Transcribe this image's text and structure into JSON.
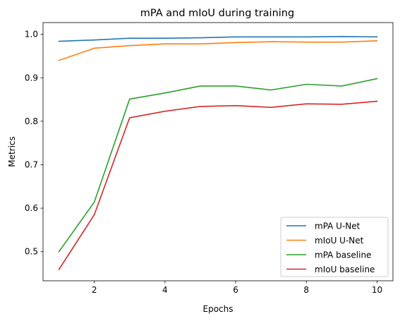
{
  "chart_data": {
    "type": "line",
    "title": "mPA and mIoU during training",
    "xlabel": "Epochs",
    "ylabel": "Metrics",
    "x": [
      1,
      2,
      3,
      4,
      5,
      6,
      7,
      8,
      9,
      10
    ],
    "xlim": [
      0.55,
      10.45
    ],
    "ylim": [
      0.433,
      1.027
    ],
    "xticks": [
      2,
      4,
      6,
      8,
      10
    ],
    "yticks": [
      0.5,
      0.6,
      0.7,
      0.8,
      0.9,
      1.0
    ],
    "ytick_labels": [
      "0.5",
      "0.6",
      "0.7",
      "0.8",
      "0.9",
      "1.0"
    ],
    "grid": false,
    "legend_position": "bottom-right",
    "series": [
      {
        "name": "mPA U-Net",
        "color": "#1f77b4",
        "values": [
          0.984,
          0.987,
          0.991,
          0.991,
          0.992,
          0.994,
          0.994,
          0.994,
          0.995,
          0.994
        ]
      },
      {
        "name": "mIoU U-Net",
        "color": "#ff7f0e",
        "values": [
          0.94,
          0.968,
          0.974,
          0.978,
          0.978,
          0.981,
          0.983,
          0.982,
          0.982,
          0.985
        ]
      },
      {
        "name": "mPA baseline",
        "color": "#2ca02c",
        "values": [
          0.5,
          0.614,
          0.851,
          0.865,
          0.881,
          0.881,
          0.872,
          0.885,
          0.881,
          0.898
        ]
      },
      {
        "name": "mIoU baseline",
        "color": "#d62728",
        "values": [
          0.459,
          0.585,
          0.808,
          0.823,
          0.834,
          0.836,
          0.832,
          0.84,
          0.839,
          0.846
        ]
      }
    ]
  }
}
